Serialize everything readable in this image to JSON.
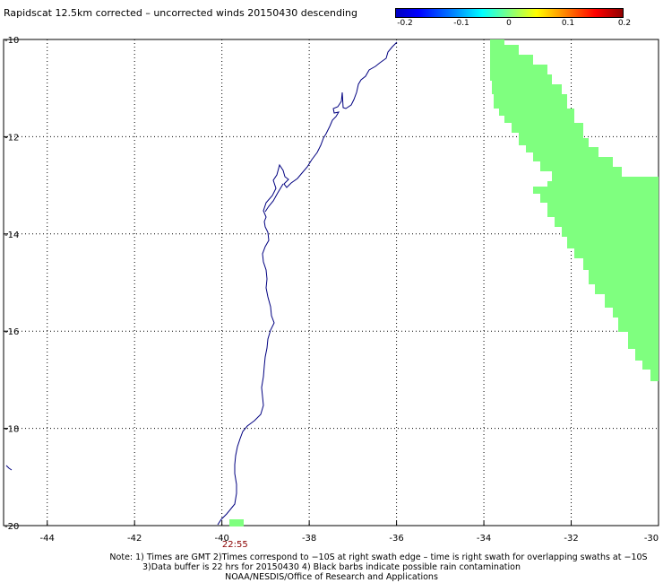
{
  "title": "Rapidscat 12.5km corrected – uncorrected winds 20150430 descending",
  "colorbar": {
    "labels": [
      "-0.2",
      "-0.1",
      "0",
      "0.1",
      "0.2"
    ],
    "min": -0.2,
    "max": 0.2
  },
  "map": {
    "lon_range": [
      -45,
      -30
    ],
    "lat_range": [
      -20,
      -10
    ],
    "lon_ticks": [
      -44,
      -42,
      -40,
      -38,
      -36,
      -34,
      -32,
      -30
    ],
    "lon_tick_labels": [
      "-44",
      "-42",
      "-40",
      "-38",
      "-36",
      "-34",
      "-32",
      "-30"
    ],
    "lat_ticks": [
      -10,
      -12,
      -14,
      -16,
      -18,
      -20
    ],
    "lat_tick_labels": [
      "-10",
      "-12",
      "-14",
      "-16",
      "-18",
      "-20"
    ],
    "grid": true,
    "coast_color": "#000080",
    "swath_color": "#7fff7f",
    "time_label": "22:55",
    "time_label_pos": [
      -39.7,
      -20.35
    ]
  },
  "notes": {
    "line1": "Note: 1) Times are GMT 2)Times correspond to −10S at right swath edge – time is right swath for overlapping swaths at −10S",
    "line2": "3)Data buffer is 22 hrs for 20150430 4) Black barbs indicate possible rain contamination",
    "line3": "NOAA/NESDIS/Office of Research and Applications"
  }
}
